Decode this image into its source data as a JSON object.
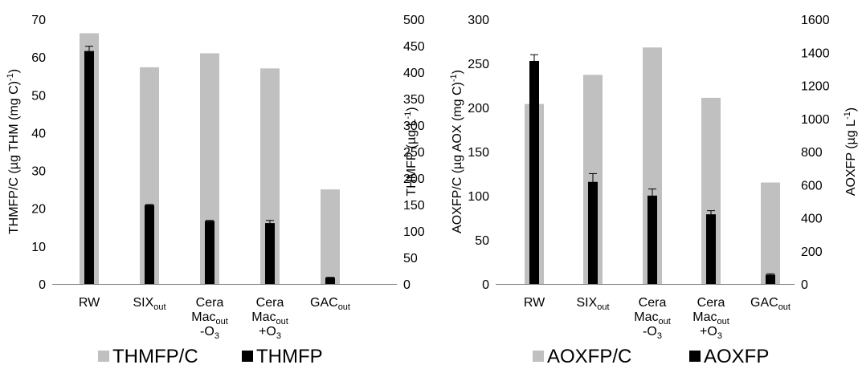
{
  "chart_data": [
    {
      "type": "bar",
      "categories": [
        {
          "lines": [
            {
              "text": "RW"
            }
          ]
        },
        {
          "lines": [
            {
              "text": "SIX",
              "sub": "out"
            }
          ]
        },
        {
          "lines": [
            {
              "text": "Cera"
            },
            {
              "text": "Mac",
              "sub": "out"
            },
            {
              "text": "-O",
              "sub": "3"
            }
          ]
        },
        {
          "lines": [
            {
              "text": "Cera"
            },
            {
              "text": "Mac",
              "sub": "out"
            },
            {
              "text": "+O",
              "sub": "3"
            }
          ]
        },
        {
          "lines": [
            {
              "text": "GAC",
              "sub": "out"
            }
          ]
        }
      ],
      "y_left": {
        "label_main": "THMFP/C (µg THM (mg C)",
        "label_sup": "-1",
        "label_end": ")",
        "lim": [
          0,
          70
        ],
        "ticks": [
          0,
          10,
          20,
          30,
          40,
          50,
          60,
          70
        ]
      },
      "y_right": {
        "label_main": "THMFP (µg L",
        "label_sup": "-1",
        "label_end": ")",
        "lim": [
          0,
          500
        ],
        "ticks": [
          0,
          50,
          100,
          150,
          200,
          250,
          300,
          350,
          400,
          450,
          500
        ]
      },
      "series": [
        {
          "name": "THMFP/C",
          "axis": "left",
          "color": "#c0c0c0",
          "values": [
            66.3,
            57.3,
            61.0,
            57.0,
            25.0
          ]
        },
        {
          "name": "THMFP",
          "axis": "right",
          "color": "#000000",
          "values": [
            440,
            149,
            119,
            115,
            12
          ],
          "errors": [
            9,
            1,
            1,
            5,
            0.5
          ]
        }
      ],
      "legend": {
        "placement": "bottom"
      }
    },
    {
      "type": "bar",
      "categories": [
        {
          "lines": [
            {
              "text": "RW"
            }
          ]
        },
        {
          "lines": [
            {
              "text": "SIX",
              "sub": "out"
            }
          ]
        },
        {
          "lines": [
            {
              "text": "Cera"
            },
            {
              "text": "Mac",
              "sub": "out"
            },
            {
              "text": "-O",
              "sub": "3"
            }
          ]
        },
        {
          "lines": [
            {
              "text": "Cera"
            },
            {
              "text": "Mac",
              "sub": "out"
            },
            {
              "text": "+O",
              "sub": "3"
            }
          ]
        },
        {
          "lines": [
            {
              "text": "GAC",
              "sub": "out"
            }
          ]
        }
      ],
      "y_left": {
        "label_main": "AOXFP/C (µg AOX (mg C)",
        "label_sup": "-1",
        "label_end": ")",
        "lim": [
          0,
          300
        ],
        "ticks": [
          0,
          50,
          100,
          150,
          200,
          250,
          300
        ]
      },
      "y_right": {
        "label_main": "AOXFP (µg L",
        "label_sup": "-1",
        "label_end": ")",
        "lim": [
          0,
          1600
        ],
        "ticks": [
          0,
          200,
          400,
          600,
          800,
          1000,
          1200,
          1400,
          1600
        ]
      },
      "series": [
        {
          "name": "AOXFP/C",
          "axis": "left",
          "color": "#c0c0c0",
          "values": [
            204,
            237,
            268,
            211,
            115
          ]
        },
        {
          "name": "AOXFP",
          "axis": "right",
          "color": "#000000",
          "values": [
            1348,
            617,
            534,
            421,
            56
          ],
          "errors": [
            38,
            50,
            40,
            22,
            5
          ]
        }
      ],
      "legend": {
        "placement": "bottom"
      }
    }
  ]
}
